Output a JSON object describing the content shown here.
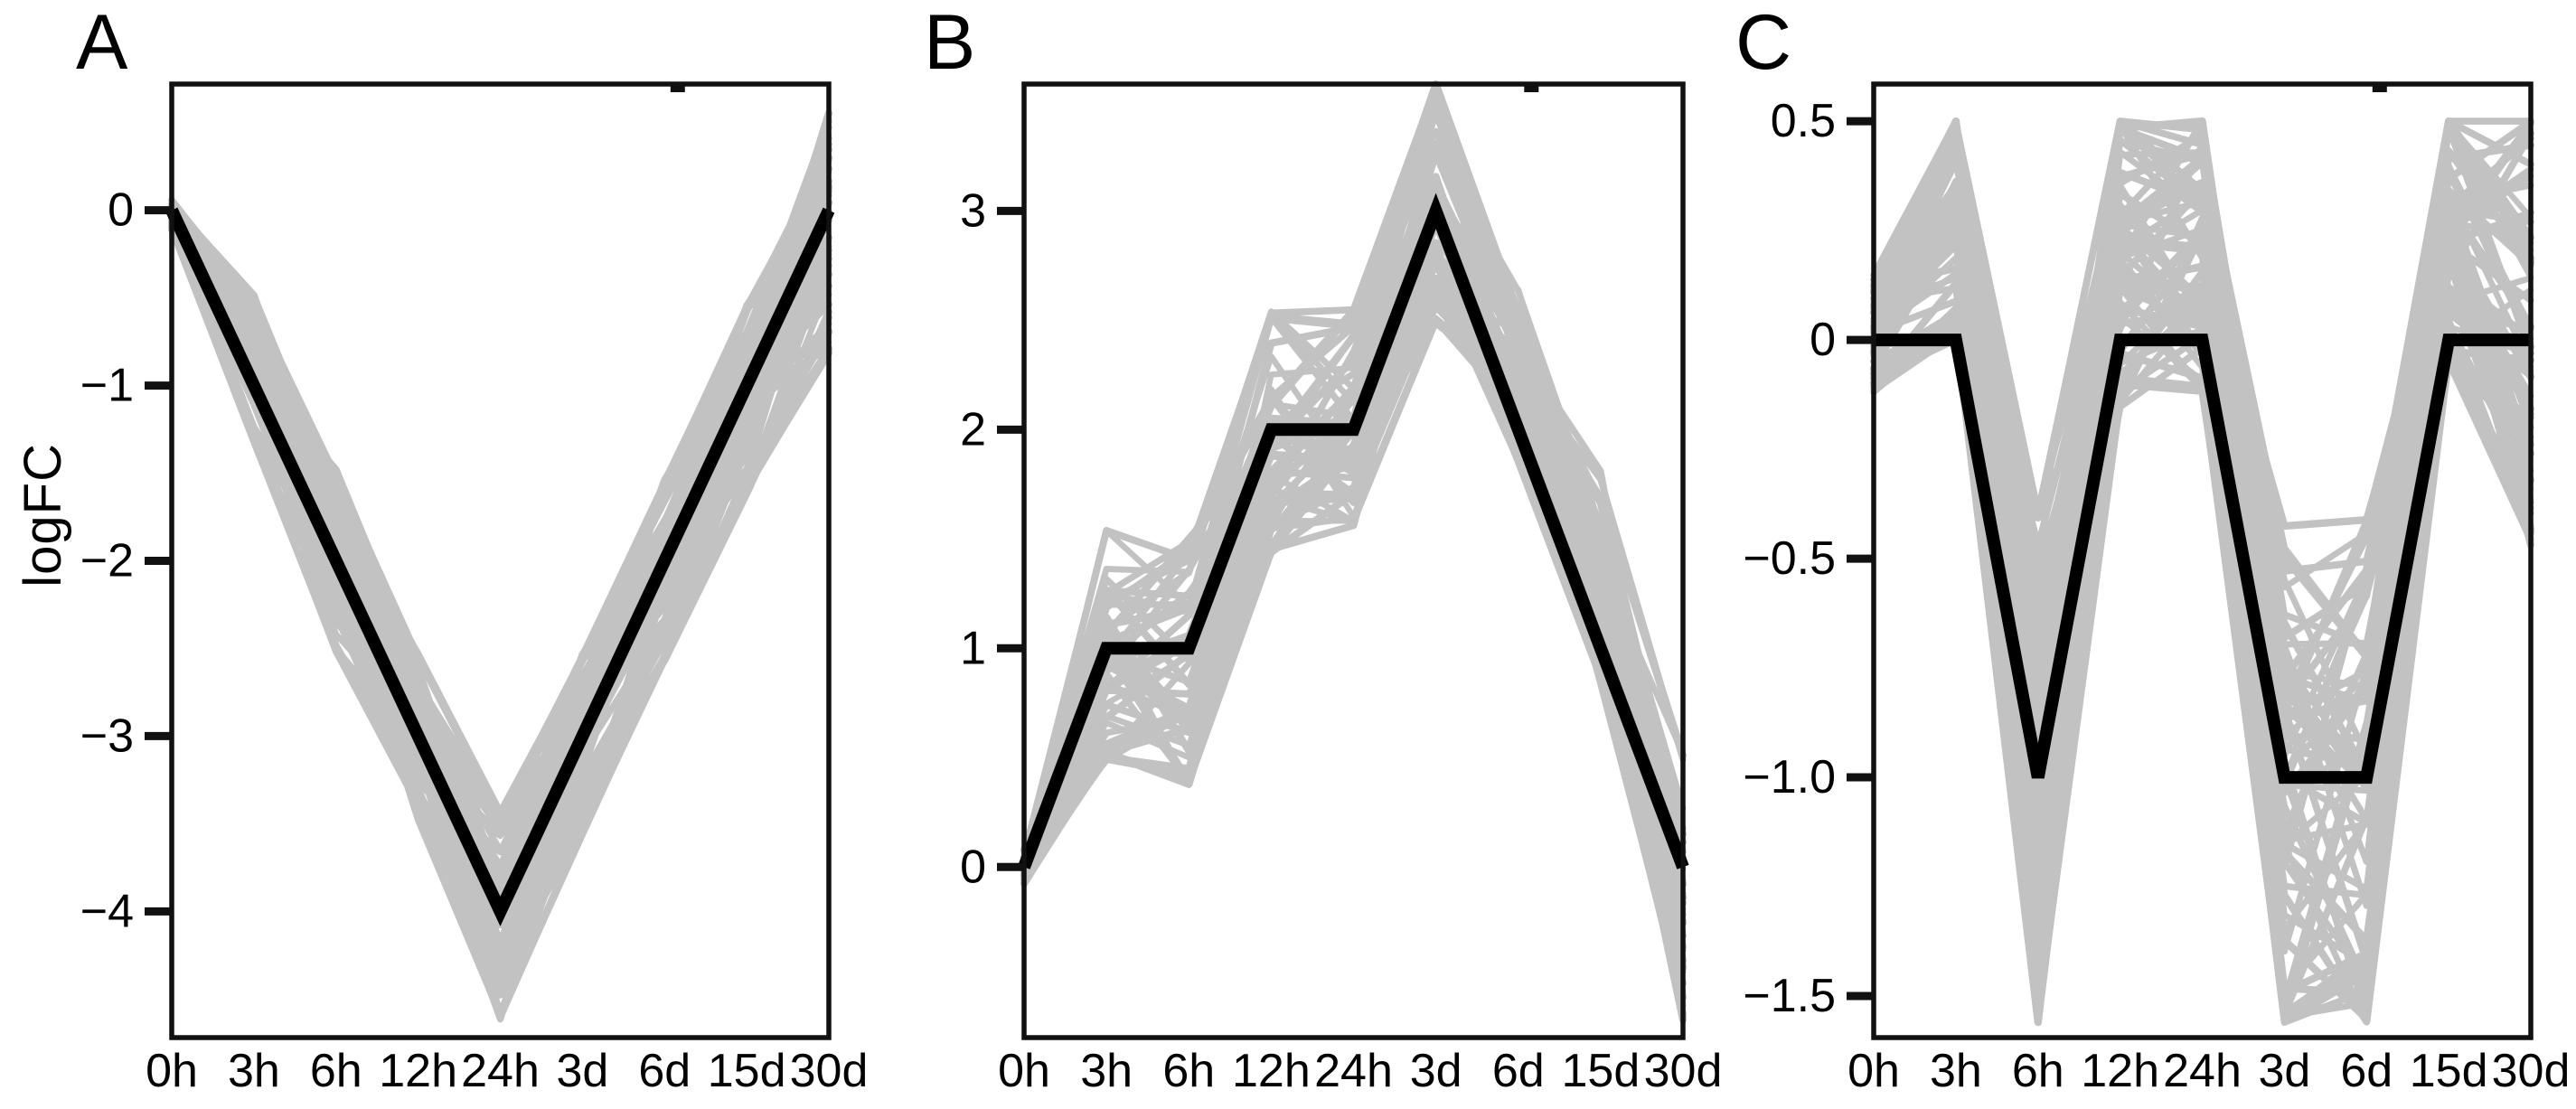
{
  "figure": {
    "background": "#ffffff",
    "ylabel": "logFC",
    "x_categories": [
      "0h",
      "3h",
      "6h",
      "12h",
      "24h",
      "3d",
      "6d",
      "15d",
      "30d"
    ],
    "colors": {
      "centroid_line": "#000000",
      "background_lines": "#c2c2c2",
      "axis": "#111111",
      "text": "#000000"
    }
  },
  "chart_data": [
    {
      "type": "line",
      "panel_label": "A",
      "description": "Cluster of gene logFC trajectories (grey) with centroid (black): monotone decrease to -4 at 24h then recovery to 0 at 30d",
      "x_categories": [
        "0h",
        "3h",
        "6h",
        "12h",
        "24h",
        "3d",
        "6d",
        "15d",
        "30d"
      ],
      "ylabel": "logFC",
      "centroid": [
        0,
        -1,
        -2,
        -3,
        -4,
        -3,
        -2,
        -1,
        0
      ],
      "band_upper": [
        0.04,
        -0.5,
        -1.5,
        -2.55,
        -3.45,
        -2.55,
        -1.55,
        -0.55,
        0.55
      ],
      "band_lower": [
        -0.1,
        -1.3,
        -2.5,
        -3.5,
        -4.6,
        -3.55,
        -2.55,
        -1.6,
        -0.8
      ],
      "clamp": {
        "min": -4.62,
        "max": 0.6
      },
      "n_background_lines": 55,
      "yticks": [
        {
          "value": 0,
          "label": "0"
        },
        {
          "value": -1,
          "label": "−1"
        },
        {
          "value": -2,
          "label": "−2"
        },
        {
          "value": -3,
          "label": "−3"
        },
        {
          "value": -4,
          "label": "−4"
        }
      ],
      "ylim": [
        -4.72,
        0.72
      ],
      "grid": false,
      "legend": null
    },
    {
      "type": "line",
      "panel_label": "B",
      "description": "Cluster of gene logFC trajectories (grey) with centroid (black): stepwise rise 0,1,1,2,2 to peak 3 at 3d, then linear decline to 0 at 30d",
      "x_categories": [
        "0h",
        "3h",
        "6h",
        "12h",
        "24h",
        "3d",
        "6d",
        "15d",
        "30d"
      ],
      "ylabel": "logFC",
      "centroid": [
        0,
        1,
        1,
        2,
        2,
        3,
        2,
        1,
        0
      ],
      "band_upper": [
        0.08,
        1.55,
        1.5,
        2.52,
        2.55,
        3.56,
        2.62,
        1.8,
        0.5
      ],
      "band_lower": [
        -0.06,
        0.5,
        0.38,
        1.45,
        1.58,
        2.5,
        1.85,
        0.85,
        -0.68
      ],
      "clamp": {
        "min": -0.72,
        "max": 3.58
      },
      "n_background_lines": 55,
      "yticks": [
        {
          "value": 3,
          "label": "3"
        },
        {
          "value": 2,
          "label": "2"
        },
        {
          "value": 1,
          "label": "1"
        },
        {
          "value": 0,
          "label": "0"
        }
      ],
      "ylim": [
        -0.78,
        3.58
      ],
      "grid": false,
      "legend": null
    },
    {
      "type": "line",
      "panel_label": "C",
      "description": "Cluster of gene logFC trajectories (grey) with centroid (black): W-shape, dips to -1 at 6h and a flat -1 valley from 3d to 6d, flat 0 elsewhere",
      "x_categories": [
        "0h",
        "3h",
        "6h",
        "12h",
        "24h",
        "3d",
        "6d",
        "15d",
        "30d"
      ],
      "ylabel": "logFC",
      "centroid": [
        0,
        0,
        -1,
        0,
        0,
        -1,
        -1,
        0,
        0
      ],
      "band_upper": [
        0.13,
        0.5,
        -0.4,
        0.5,
        0.5,
        -0.42,
        -0.42,
        0.5,
        0.5
      ],
      "band_lower": [
        -0.1,
        0.02,
        -1.56,
        -0.15,
        -0.1,
        -1.56,
        -1.56,
        -0.05,
        -0.45
      ],
      "clamp": {
        "min": -1.56,
        "max": 0.5
      },
      "n_background_lines": 70,
      "yticks": [
        {
          "value": 0.5,
          "label": "0.5"
        },
        {
          "value": 0,
          "label": "0"
        },
        {
          "value": -0.5,
          "label": "−0.5"
        },
        {
          "value": -1.0,
          "label": "−1.0"
        },
        {
          "value": -1.5,
          "label": "−1.5"
        }
      ],
      "ylim": [
        -1.595,
        0.585
      ],
      "grid": false,
      "legend": null
    }
  ]
}
